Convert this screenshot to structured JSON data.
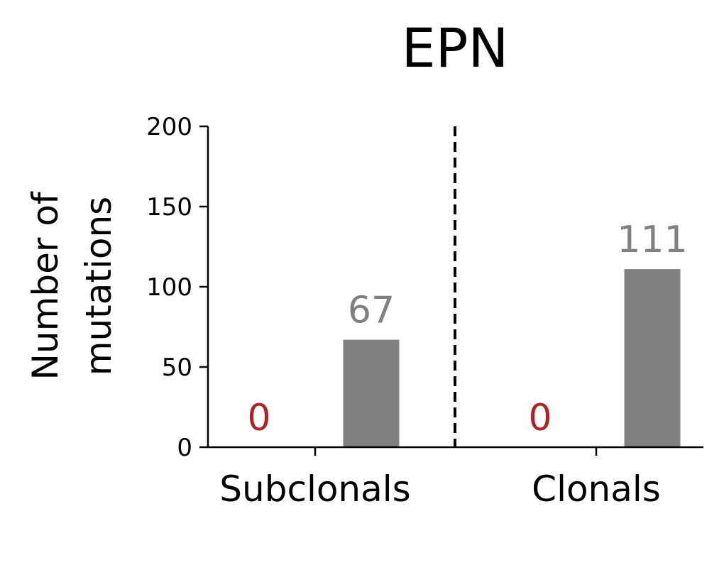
{
  "chart_data": {
    "type": "bar",
    "title": "EPN",
    "xlabel": "",
    "ylabel_lines": [
      "Number of",
      "mutations"
    ],
    "ylim": [
      0,
      200
    ],
    "yticks": [
      0,
      50,
      100,
      150,
      200
    ],
    "categories": [
      "Subclonals",
      "Clonals"
    ],
    "series": [
      {
        "color": "#b22222",
        "values": [
          0,
          0
        ],
        "labels": [
          "0",
          "0"
        ]
      },
      {
        "color": "#808080",
        "values": [
          67,
          111
        ],
        "labels": [
          "67",
          "111"
        ]
      }
    ],
    "separator": {
      "style": "dashed",
      "between": [
        "Subclonals",
        "Clonals"
      ]
    },
    "grid": false,
    "legend": "none"
  }
}
